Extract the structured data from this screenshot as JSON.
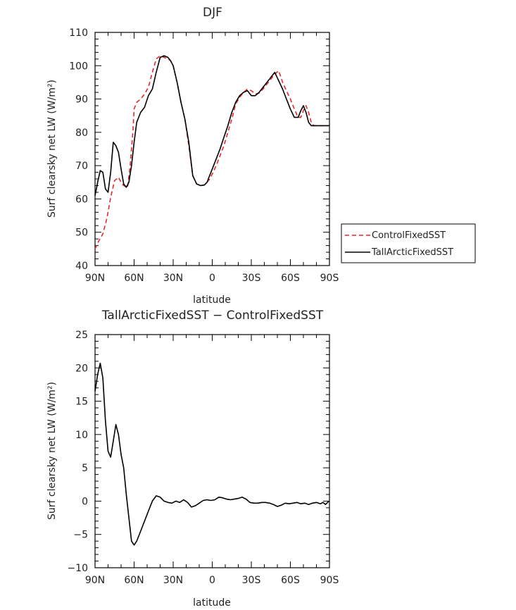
{
  "chart_data": [
    {
      "type": "line",
      "title": "DJF",
      "xlabel": "latitude",
      "ylabel": "Surf clearsky net LW (W/m²)",
      "xlim": [
        90,
        -90
      ],
      "ylim": [
        40,
        110
      ],
      "x_tick_values": [
        90,
        60,
        30,
        0,
        -30,
        -60,
        -90
      ],
      "x_tick_labels": [
        "90N",
        "60N",
        "30N",
        "0",
        "30S",
        "60S",
        "90S"
      ],
      "y_ticks": [
        40,
        50,
        60,
        70,
        80,
        90,
        100,
        110
      ],
      "legend": "outside-right",
      "series": [
        {
          "name": "ControlFixedSST",
          "color": "#e8262a",
          "dash": "dashed",
          "x": [
            90,
            87,
            84,
            81,
            78,
            75,
            72,
            70,
            68,
            65,
            63,
            61,
            60,
            58,
            55,
            52,
            49,
            46,
            43,
            40,
            37,
            34,
            32,
            30,
            27,
            24,
            21,
            18,
            15,
            12,
            9,
            6,
            4,
            2,
            0,
            -3,
            -6,
            -9,
            -12,
            -15,
            -18,
            -21,
            -24,
            -27,
            -30,
            -33,
            -36,
            -39,
            -42,
            -45,
            -48,
            -51,
            -54,
            -57,
            -60,
            -63,
            -66,
            -68,
            -70,
            -72,
            -74,
            -76,
            -78,
            -80,
            -82,
            -84,
            -86,
            -88,
            -90
          ],
          "y": [
            45,
            47.5,
            49.5,
            54,
            60.5,
            65.5,
            66.5,
            65,
            64,
            63.5,
            70,
            80,
            87,
            89,
            90,
            91.5,
            93.5,
            98,
            102,
            103,
            102.5,
            102,
            101.5,
            100,
            95,
            89,
            84,
            76,
            67,
            64.5,
            64,
            64.2,
            65,
            66,
            67.5,
            70,
            73,
            76,
            80,
            84,
            88.5,
            90.5,
            92,
            93,
            92.5,
            91.5,
            91.8,
            93,
            94.5,
            96,
            97.5,
            98.5,
            95,
            92.5,
            90,
            87,
            84.5,
            84.5,
            86.5,
            88,
            86,
            83,
            82,
            82,
            82,
            82,
            82,
            82,
            82
          ]
        },
        {
          "name": "TallArcticFixedSST",
          "color": "#000000",
          "dash": "solid",
          "x": [
            90,
            88,
            86,
            84,
            82,
            80,
            78,
            76,
            74,
            72,
            70,
            68,
            66,
            64,
            62,
            60,
            58,
            55,
            52,
            49,
            46,
            43,
            40,
            37,
            34,
            32,
            30,
            27,
            24,
            21,
            18,
            15,
            12,
            9,
            6,
            4,
            2,
            0,
            -3,
            -6,
            -9,
            -12,
            -15,
            -18,
            -21,
            -24,
            -27,
            -30,
            -33,
            -36,
            -39,
            -42,
            -45,
            -48,
            -51,
            -54,
            -57,
            -60,
            -63,
            -66,
            -68,
            -70,
            -72,
            -74,
            -76,
            -78,
            -80,
            -82,
            -84,
            -86,
            -88,
            -90
          ],
          "y": [
            61,
            65,
            68.5,
            68,
            63,
            62,
            68,
            77,
            76,
            74,
            69,
            64.5,
            63.5,
            65,
            70,
            77,
            83,
            86,
            87.5,
            91,
            93,
            98,
            102.5,
            103,
            102.5,
            101.5,
            100,
            95,
            89,
            84,
            77,
            67,
            64.5,
            64,
            64.2,
            65,
            67,
            69,
            72,
            75,
            78.5,
            82,
            86,
            89,
            91,
            92,
            92.5,
            91,
            91,
            92,
            93.5,
            95,
            96.5,
            98,
            95.5,
            93,
            90,
            87,
            84.5,
            84.5,
            86.5,
            88,
            86,
            83,
            82,
            82,
            82,
            82,
            82,
            82,
            82,
            82
          ]
        }
      ]
    },
    {
      "type": "line",
      "title": "TallArcticFixedSST − ControlFixedSST",
      "xlabel": "latitude",
      "ylabel": "Surf clearsky net LW (W/m²)",
      "xlim": [
        90,
        -90
      ],
      "ylim": [
        -10,
        25
      ],
      "x_tick_values": [
        90,
        60,
        30,
        0,
        -30,
        -60,
        -90
      ],
      "x_tick_labels": [
        "90N",
        "60N",
        "30N",
        "0",
        "30S",
        "60S",
        "90S"
      ],
      "y_ticks": [
        -10,
        -5,
        0,
        5,
        10,
        15,
        20,
        25
      ],
      "series": [
        {
          "color": "#000000",
          "dash": "solid",
          "x": [
            90,
            88,
            86,
            84,
            82,
            80,
            78,
            76,
            74,
            72,
            70,
            68,
            66,
            64,
            62,
            60,
            58,
            55,
            52,
            49,
            46,
            43,
            40,
            37,
            34,
            31,
            28,
            25,
            22,
            19,
            16,
            13,
            10,
            7,
            4,
            1,
            -2,
            -5,
            -8,
            -11,
            -14,
            -17,
            -20,
            -23,
            -26,
            -29,
            -32,
            -35,
            -38,
            -41,
            -44,
            -47,
            -50,
            -53,
            -56,
            -59,
            -62,
            -65,
            -68,
            -71,
            -74,
            -77,
            -80,
            -83,
            -85,
            -87,
            -89,
            -90
          ],
          "y": [
            16.5,
            19,
            20.7,
            18.5,
            12,
            7.5,
            6.6,
            9,
            11.5,
            10,
            7,
            5,
            1,
            -2.5,
            -6,
            -6.6,
            -6,
            -4.5,
            -3,
            -1.5,
            0,
            0.8,
            0.6,
            0,
            -0.2,
            -0.3,
            0,
            -0.2,
            0.2,
            -0.2,
            -0.9,
            -0.7,
            -0.3,
            0.1,
            0.2,
            0.1,
            0.2,
            0.6,
            0.5,
            0.3,
            0.2,
            0.3,
            0.4,
            0.6,
            0.3,
            -0.2,
            -0.3,
            -0.3,
            -0.2,
            -0.2,
            -0.3,
            -0.5,
            -0.8,
            -0.6,
            -0.3,
            -0.4,
            -0.3,
            -0.2,
            -0.4,
            -0.3,
            -0.5,
            -0.3,
            -0.2,
            -0.4,
            -0.2,
            -0.5,
            -0.1,
            0
          ]
        }
      ]
    }
  ]
}
